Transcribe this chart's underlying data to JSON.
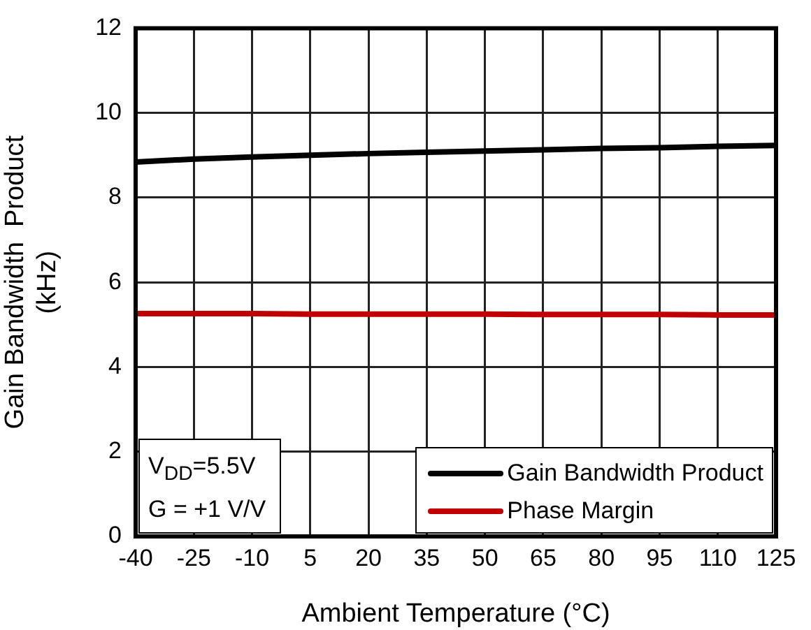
{
  "chart_data": {
    "type": "line",
    "xlabel": "Ambient Temperature (°C)",
    "ylabel": "Gain Bandwidth  Product\n(kHz)",
    "x": [
      -40,
      -25,
      -10,
      5,
      20,
      35,
      50,
      65,
      80,
      95,
      110,
      125
    ],
    "series": [
      {
        "name": "Gain Bandwidth Product",
        "color": "#000000",
        "values": [
          8.84,
          8.91,
          8.96,
          9.0,
          9.04,
          9.07,
          9.1,
          9.13,
          9.16,
          9.18,
          9.21,
          9.23
        ]
      },
      {
        "name": "Phase Margin",
        "color": "#c00000",
        "values": [
          5.26,
          5.26,
          5.26,
          5.25,
          5.25,
          5.25,
          5.25,
          5.24,
          5.24,
          5.24,
          5.23,
          5.23
        ]
      }
    ],
    "xlim": [
      -40,
      125
    ],
    "xticks": [
      -40,
      -25,
      -10,
      5,
      20,
      35,
      50,
      65,
      80,
      95,
      110,
      125
    ],
    "ylim": [
      0,
      12
    ],
    "yticks": [
      0,
      2,
      4,
      6,
      8,
      10,
      12
    ],
    "annotations": [
      "V$_{DD}$=5.5V\nG = +1 V/V"
    ],
    "grid": true,
    "legend": "bottom right",
    "marker": "none",
    "line_style": "solid"
  }
}
